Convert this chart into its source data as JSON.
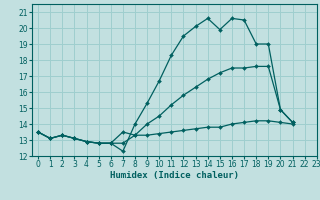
{
  "xlabel": "Humidex (Indice chaleur)",
  "bg_color": "#c2e0e0",
  "line_color": "#006060",
  "grid_color": "#9ecece",
  "x_values": [
    0,
    1,
    2,
    3,
    4,
    5,
    6,
    7,
    8,
    9,
    10,
    11,
    12,
    13,
    14,
    15,
    16,
    17,
    18,
    19,
    20,
    21
  ],
  "line1": [
    13.5,
    13.1,
    13.3,
    13.1,
    12.9,
    12.8,
    12.8,
    12.3,
    14.0,
    15.3,
    16.7,
    18.3,
    19.5,
    20.1,
    20.6,
    19.9,
    20.6,
    20.5,
    19.0,
    19.0,
    14.9,
    14.1
  ],
  "line2": [
    13.5,
    13.1,
    13.3,
    13.1,
    12.9,
    12.8,
    12.8,
    12.8,
    13.3,
    14.0,
    14.5,
    15.2,
    15.8,
    16.3,
    16.8,
    17.2,
    17.5,
    17.5,
    17.6,
    17.6,
    14.9,
    14.1
  ],
  "line3": [
    13.5,
    13.1,
    13.3,
    13.1,
    12.9,
    12.8,
    12.8,
    13.5,
    13.3,
    13.3,
    13.4,
    13.5,
    13.6,
    13.7,
    13.8,
    13.8,
    14.0,
    14.1,
    14.2,
    14.2,
    14.1,
    14.0
  ],
  "xlim": [
    -0.5,
    23.0
  ],
  "ylim": [
    12.0,
    21.5
  ],
  "yticks": [
    12,
    13,
    14,
    15,
    16,
    17,
    18,
    19,
    20,
    21
  ],
  "xticks": [
    0,
    1,
    2,
    3,
    4,
    5,
    6,
    7,
    8,
    9,
    10,
    11,
    12,
    13,
    14,
    15,
    16,
    17,
    18,
    19,
    20,
    21,
    22,
    23
  ]
}
